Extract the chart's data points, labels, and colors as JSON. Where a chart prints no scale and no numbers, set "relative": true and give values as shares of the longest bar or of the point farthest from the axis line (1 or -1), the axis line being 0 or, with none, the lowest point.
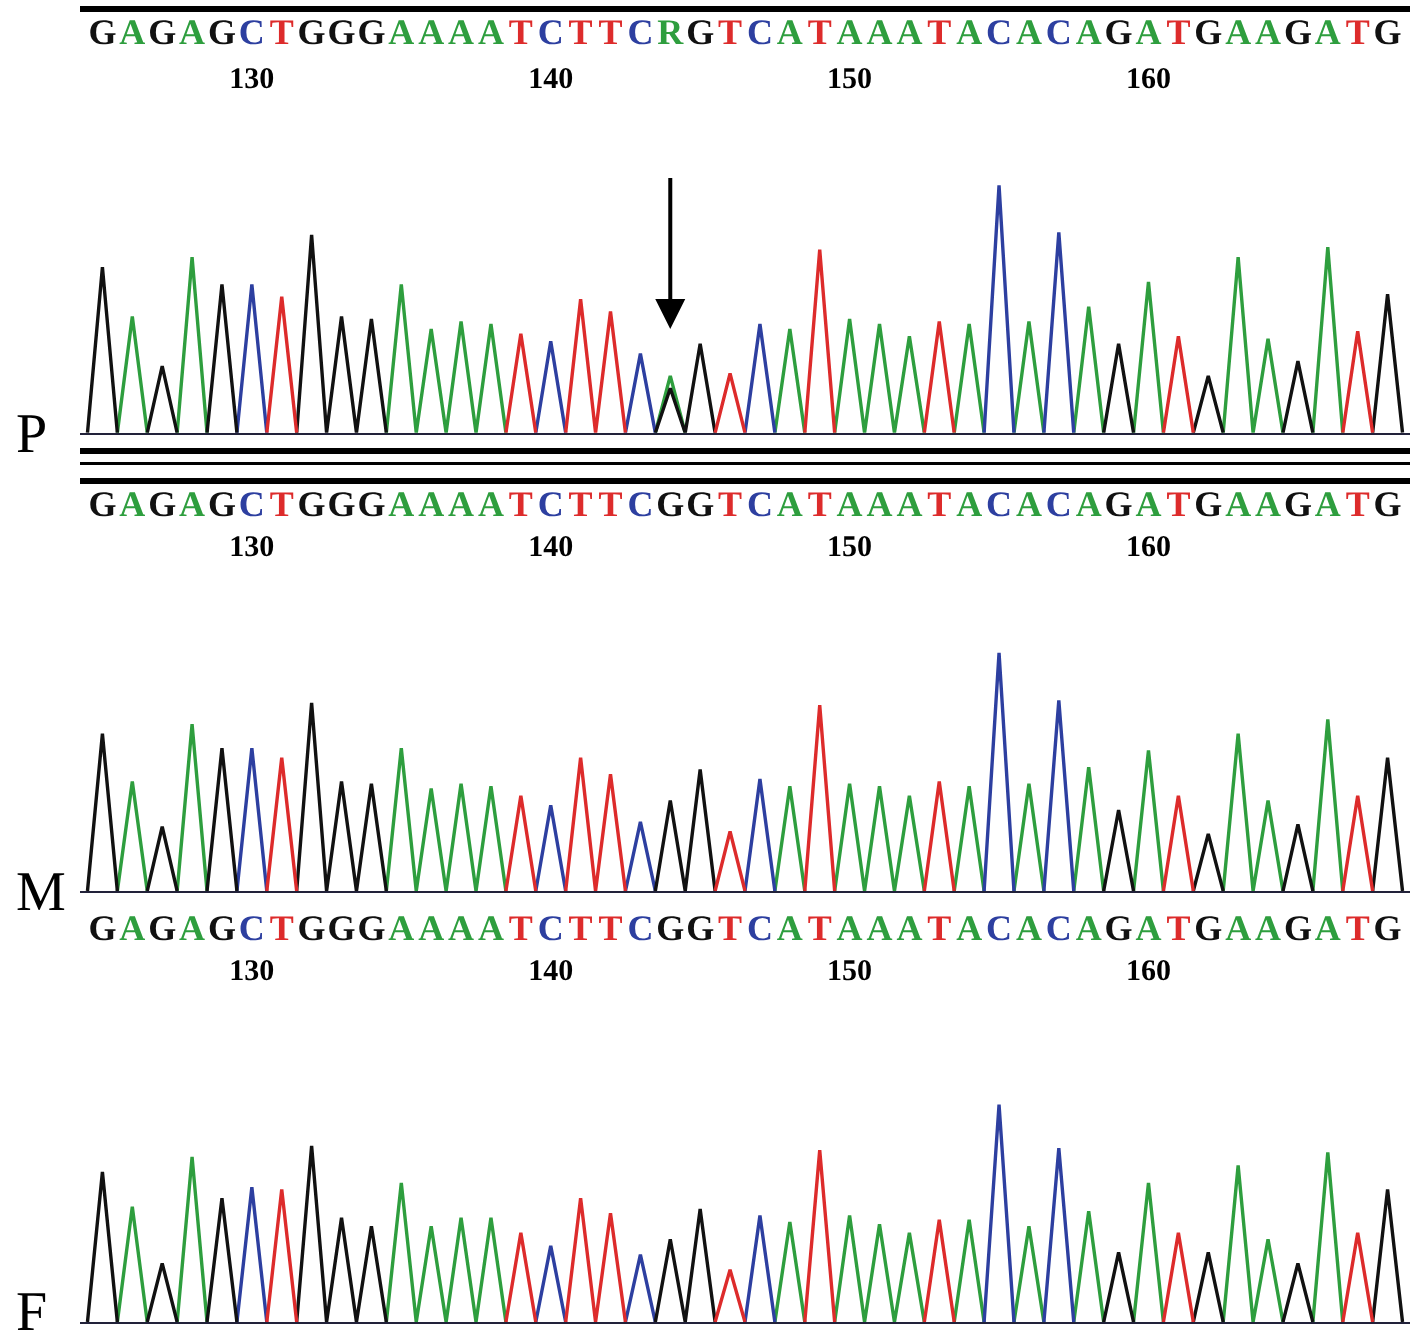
{
  "chart_data": [
    {
      "type": "line",
      "title": "P",
      "relative": true,
      "categories": [
        null,
        "G",
        null,
        "A",
        null,
        "G",
        null,
        "A",
        null,
        "G",
        null,
        "C",
        null,
        "T",
        null,
        "G",
        null,
        "G",
        null,
        "G",
        null,
        "A",
        null,
        "A",
        null,
        "A",
        null,
        "A",
        null,
        "T",
        null,
        "C",
        null,
        "T",
        null,
        "T",
        null,
        "C",
        null,
        "R",
        null,
        "G",
        null,
        "T",
        null,
        "C",
        null,
        "A",
        null,
        "T",
        null,
        "A",
        null,
        "A",
        null,
        "A",
        null,
        "T",
        null,
        "A",
        null,
        "C",
        null,
        "A",
        null,
        "C",
        null,
        "A",
        null,
        "G",
        null,
        "A",
        null,
        "T",
        null,
        "G",
        null,
        "A",
        null,
        "A",
        null,
        "G",
        null,
        "A",
        null,
        "T",
        null,
        "G",
        null
      ],
      "x2lim": [
        124.25,
        168.75
      ],
      "x2ticks": [
        130,
        140,
        150,
        160
      ],
      "series": [
        {
          "color": "#2e9e3e",
          "values": [
            null,
            null,
            0,
            0.47,
            0,
            null,
            0,
            0.71,
            0,
            null,
            null,
            null,
            null,
            null,
            null,
            null,
            null,
            null,
            null,
            null,
            0,
            0.6,
            0,
            0.42,
            0,
            0.45,
            0,
            0.44,
            0,
            null,
            null,
            null,
            null,
            null,
            null,
            null,
            null,
            null,
            0,
            0.23,
            0,
            null,
            null,
            null,
            null,
            null,
            0,
            0.42,
            0,
            null,
            0,
            0.46,
            0,
            0.44,
            0,
            0.39,
            0,
            null,
            0,
            0.44,
            0,
            null,
            0,
            0.45,
            0,
            null,
            0,
            0.51,
            0,
            null,
            0,
            0.61,
            0,
            null,
            null,
            null,
            0,
            0.71,
            0,
            0.38,
            0,
            null,
            0,
            0.75,
            0,
            null,
            null,
            null,
            null
          ]
        },
        {
          "color": "#2d3fa0",
          "values": [
            null,
            null,
            null,
            null,
            null,
            null,
            null,
            null,
            null,
            null,
            0,
            0.6,
            0,
            null,
            null,
            null,
            null,
            null,
            null,
            null,
            null,
            null,
            null,
            null,
            null,
            null,
            null,
            null,
            null,
            null,
            0,
            0.37,
            0,
            null,
            null,
            null,
            0,
            0.32,
            0,
            null,
            null,
            null,
            null,
            null,
            0,
            0.44,
            0,
            null,
            null,
            null,
            null,
            null,
            null,
            null,
            null,
            null,
            null,
            null,
            null,
            null,
            0,
            1,
            0,
            null,
            0,
            0.81,
            0,
            null,
            null,
            null,
            null,
            null,
            null,
            null,
            null,
            null,
            null,
            null,
            null,
            null,
            null,
            null,
            null,
            null,
            null,
            null,
            null,
            null,
            null
          ]
        },
        {
          "color": "#111111",
          "values": [
            0,
            0.67,
            0,
            null,
            0,
            0.27,
            0,
            null,
            0,
            0.6,
            0,
            null,
            null,
            null,
            0,
            0.8,
            0,
            0.47,
            0,
            0.46,
            0,
            null,
            null,
            null,
            null,
            null,
            null,
            null,
            null,
            null,
            null,
            null,
            null,
            null,
            null,
            null,
            null,
            null,
            0,
            0.18,
            0,
            0.36,
            0,
            null,
            null,
            null,
            null,
            null,
            null,
            null,
            null,
            null,
            null,
            null,
            null,
            null,
            null,
            null,
            null,
            null,
            null,
            null,
            null,
            null,
            null,
            null,
            null,
            null,
            0,
            0.36,
            0,
            null,
            null,
            null,
            0,
            0.23,
            0,
            null,
            null,
            null,
            0,
            0.29,
            0,
            null,
            null,
            null,
            0,
            0.56,
            0
          ]
        },
        {
          "color": "#dd2b2b",
          "values": [
            null,
            null,
            null,
            null,
            null,
            null,
            null,
            null,
            null,
            null,
            null,
            null,
            0,
            0.55,
            0,
            null,
            null,
            null,
            null,
            null,
            null,
            null,
            null,
            null,
            null,
            null,
            null,
            null,
            0,
            0.4,
            0,
            null,
            0,
            0.54,
            0,
            0.49,
            0,
            null,
            null,
            null,
            null,
            null,
            0,
            0.24,
            0,
            null,
            null,
            null,
            0,
            0.74,
            0,
            null,
            null,
            null,
            null,
            null,
            0,
            0.45,
            0,
            null,
            null,
            null,
            null,
            null,
            null,
            null,
            null,
            null,
            null,
            null,
            null,
            null,
            0,
            0.39,
            0,
            null,
            null,
            null,
            null,
            null,
            null,
            null,
            null,
            null,
            0,
            0.41,
            0,
            null,
            null
          ]
        }
      ]
    },
    {
      "type": "line",
      "title": "M",
      "relative": true,
      "categories": [
        null,
        "G",
        null,
        "A",
        null,
        "G",
        null,
        "A",
        null,
        "G",
        null,
        "C",
        null,
        "T",
        null,
        "G",
        null,
        "G",
        null,
        "G",
        null,
        "A",
        null,
        "A",
        null,
        "A",
        null,
        "A",
        null,
        "T",
        null,
        "C",
        null,
        "T",
        null,
        "T",
        null,
        "C",
        null,
        "G",
        null,
        "G",
        null,
        "T",
        null,
        "C",
        null,
        "A",
        null,
        "T",
        null,
        "A",
        null,
        "A",
        null,
        "A",
        null,
        "T",
        null,
        "A",
        null,
        "C",
        null,
        "A",
        null,
        "C",
        null,
        "A",
        null,
        "G",
        null,
        "A",
        null,
        "T",
        null,
        "G",
        null,
        "A",
        null,
        "A",
        null,
        "G",
        null,
        "A",
        null,
        "T",
        null,
        "G",
        null
      ],
      "x2lim": [
        124.25,
        168.75
      ],
      "x2ticks": [
        130,
        140,
        150,
        160
      ],
      "series": [
        {
          "color": "#2e9e3e",
          "values": [
            null,
            null,
            0,
            0.46,
            0,
            null,
            0,
            0.7,
            0,
            null,
            null,
            null,
            null,
            null,
            null,
            null,
            null,
            null,
            null,
            null,
            0,
            0.6,
            0,
            0.43,
            0,
            0.45,
            0,
            0.44,
            0,
            null,
            null,
            null,
            null,
            null,
            null,
            null,
            null,
            null,
            null,
            null,
            null,
            null,
            null,
            null,
            null,
            null,
            0,
            0.44,
            0,
            null,
            0,
            0.45,
            0,
            0.44,
            0,
            0.4,
            0,
            null,
            0,
            0.44,
            0,
            null,
            0,
            0.45,
            0,
            null,
            0,
            0.52,
            0,
            null,
            0,
            0.59,
            0,
            null,
            null,
            null,
            0,
            0.66,
            0,
            0.38,
            0,
            null,
            0,
            0.72,
            0,
            null,
            null,
            null,
            null
          ]
        },
        {
          "color": "#2d3fa0",
          "values": [
            null,
            null,
            null,
            null,
            null,
            null,
            null,
            null,
            null,
            null,
            0,
            0.6,
            0,
            null,
            null,
            null,
            null,
            null,
            null,
            null,
            null,
            null,
            null,
            null,
            null,
            null,
            null,
            null,
            null,
            null,
            0,
            0.36,
            0,
            null,
            null,
            null,
            0,
            0.29,
            0,
            null,
            null,
            null,
            null,
            null,
            0,
            0.47,
            0,
            null,
            null,
            null,
            null,
            null,
            null,
            null,
            null,
            null,
            null,
            null,
            null,
            null,
            0,
            1,
            0,
            null,
            0,
            0.8,
            0,
            null,
            null,
            null,
            null,
            null,
            null,
            null,
            null,
            null,
            null,
            null,
            null,
            null,
            null,
            null,
            null,
            null,
            null,
            null,
            null,
            null,
            null
          ]
        },
        {
          "color": "#111111",
          "values": [
            0,
            0.66,
            0,
            null,
            0,
            0.27,
            0,
            null,
            0,
            0.6,
            0,
            null,
            null,
            null,
            0,
            0.79,
            0,
            0.46,
            0,
            0.45,
            0,
            null,
            null,
            null,
            null,
            null,
            null,
            null,
            null,
            null,
            null,
            null,
            null,
            null,
            null,
            null,
            null,
            null,
            0,
            0.38,
            0,
            0.51,
            0,
            null,
            null,
            null,
            null,
            null,
            null,
            null,
            null,
            null,
            null,
            null,
            null,
            null,
            null,
            null,
            null,
            null,
            null,
            null,
            null,
            null,
            null,
            null,
            null,
            null,
            0,
            0.34,
            0,
            null,
            null,
            null,
            0,
            0.24,
            0,
            null,
            null,
            null,
            0,
            0.28,
            0,
            null,
            null,
            null,
            0,
            0.56,
            0
          ]
        },
        {
          "color": "#dd2b2b",
          "values": [
            null,
            null,
            null,
            null,
            null,
            null,
            null,
            null,
            null,
            null,
            null,
            null,
            0,
            0.56,
            0,
            null,
            null,
            null,
            null,
            null,
            null,
            null,
            null,
            null,
            null,
            null,
            null,
            null,
            0,
            0.4,
            0,
            null,
            0,
            0.56,
            0,
            0.49,
            0,
            null,
            null,
            null,
            null,
            null,
            0,
            0.25,
            0,
            null,
            null,
            null,
            0,
            0.78,
            0,
            null,
            null,
            null,
            null,
            null,
            0,
            0.46,
            0,
            null,
            null,
            null,
            null,
            null,
            null,
            null,
            null,
            null,
            null,
            null,
            null,
            null,
            0,
            0.4,
            0,
            null,
            null,
            null,
            null,
            null,
            null,
            null,
            null,
            null,
            0,
            0.4,
            0,
            null,
            null
          ]
        }
      ]
    },
    {
      "type": "line",
      "title": "F",
      "relative": true,
      "categories": [
        null,
        "G",
        null,
        "A",
        null,
        "G",
        null,
        "A",
        null,
        "G",
        null,
        "C",
        null,
        "T",
        null,
        "G",
        null,
        "G",
        null,
        "G",
        null,
        "A",
        null,
        "A",
        null,
        "A",
        null,
        "A",
        null,
        "T",
        null,
        "C",
        null,
        "T",
        null,
        "T",
        null,
        "C",
        null,
        "G",
        null,
        "G",
        null,
        "T",
        null,
        "C",
        null,
        "A",
        null,
        "T",
        null,
        "A",
        null,
        "A",
        null,
        "A",
        null,
        "T",
        null,
        "A",
        null,
        "C",
        null,
        "A",
        null,
        "C",
        null,
        "A",
        null,
        "G",
        null,
        "A",
        null,
        "T",
        null,
        "G",
        null,
        "A",
        null,
        "A",
        null,
        "G",
        null,
        "A",
        null,
        "T",
        null,
        "G",
        null
      ],
      "x2lim": [
        124.25,
        168.75
      ],
      "x2ticks": [
        130,
        140,
        150,
        160
      ],
      "series": [
        {
          "color": "#2e9e3e",
          "values": [
            null,
            null,
            0,
            0.53,
            0,
            null,
            0,
            0.76,
            0,
            null,
            null,
            null,
            null,
            null,
            null,
            null,
            null,
            null,
            null,
            null,
            0,
            0.64,
            0,
            0.44,
            0,
            0.48,
            0,
            0.48,
            0,
            null,
            null,
            null,
            null,
            null,
            null,
            null,
            null,
            null,
            null,
            null,
            null,
            null,
            null,
            null,
            null,
            null,
            0,
            0.46,
            0,
            null,
            0,
            0.49,
            0,
            0.45,
            0,
            0.41,
            0,
            null,
            0,
            0.47,
            0,
            null,
            0,
            0.44,
            0,
            null,
            0,
            0.51,
            0,
            null,
            0,
            0.64,
            0,
            null,
            null,
            null,
            0,
            0.72,
            0,
            0.38,
            0,
            null,
            0,
            0.78,
            0,
            null,
            null,
            null,
            null
          ]
        },
        {
          "color": "#2d3fa0",
          "values": [
            null,
            null,
            null,
            null,
            null,
            null,
            null,
            null,
            null,
            null,
            0,
            0.62,
            0,
            null,
            null,
            null,
            null,
            null,
            null,
            null,
            null,
            null,
            null,
            null,
            null,
            null,
            null,
            null,
            null,
            null,
            0,
            0.35,
            0,
            null,
            null,
            null,
            0,
            0.31,
            0,
            null,
            null,
            null,
            null,
            null,
            0,
            0.49,
            0,
            null,
            null,
            null,
            null,
            null,
            null,
            null,
            null,
            null,
            null,
            null,
            null,
            null,
            0,
            1,
            0,
            null,
            0,
            0.8,
            0,
            null,
            null,
            null,
            null,
            null,
            null,
            null,
            null,
            null,
            null,
            null,
            null,
            null,
            null,
            null,
            null,
            null,
            null,
            null,
            null,
            null,
            null
          ]
        },
        {
          "color": "#111111",
          "values": [
            0,
            0.69,
            0,
            null,
            0,
            0.27,
            0,
            null,
            0,
            0.57,
            0,
            null,
            null,
            null,
            0,
            0.81,
            0,
            0.48,
            0,
            0.44,
            0,
            null,
            null,
            null,
            null,
            null,
            null,
            null,
            null,
            null,
            null,
            null,
            null,
            null,
            null,
            null,
            null,
            null,
            0,
            0.38,
            0,
            0.52,
            0,
            null,
            null,
            null,
            null,
            null,
            null,
            null,
            null,
            null,
            null,
            null,
            null,
            null,
            null,
            null,
            null,
            null,
            null,
            null,
            null,
            null,
            null,
            null,
            null,
            null,
            0,
            0.32,
            0,
            null,
            null,
            null,
            0,
            0.32,
            0,
            null,
            null,
            null,
            0,
            0.27,
            0,
            null,
            null,
            null,
            0,
            0.61,
            0
          ]
        },
        {
          "color": "#dd2b2b",
          "values": [
            null,
            null,
            null,
            null,
            null,
            null,
            null,
            null,
            null,
            null,
            null,
            null,
            0,
            0.61,
            0,
            null,
            null,
            null,
            null,
            null,
            null,
            null,
            null,
            null,
            null,
            null,
            null,
            null,
            0,
            0.41,
            0,
            null,
            0,
            0.57,
            0,
            0.5,
            0,
            null,
            null,
            null,
            null,
            null,
            0,
            0.24,
            0,
            null,
            null,
            null,
            0,
            0.79,
            0,
            null,
            null,
            null,
            null,
            null,
            0,
            0.47,
            0,
            null,
            null,
            null,
            null,
            null,
            null,
            null,
            null,
            null,
            null,
            null,
            null,
            null,
            0,
            0.41,
            0,
            null,
            null,
            null,
            null,
            null,
            null,
            null,
            null,
            null,
            0,
            0.41,
            0,
            null,
            null
          ]
        }
      ]
    }
  ]
}
